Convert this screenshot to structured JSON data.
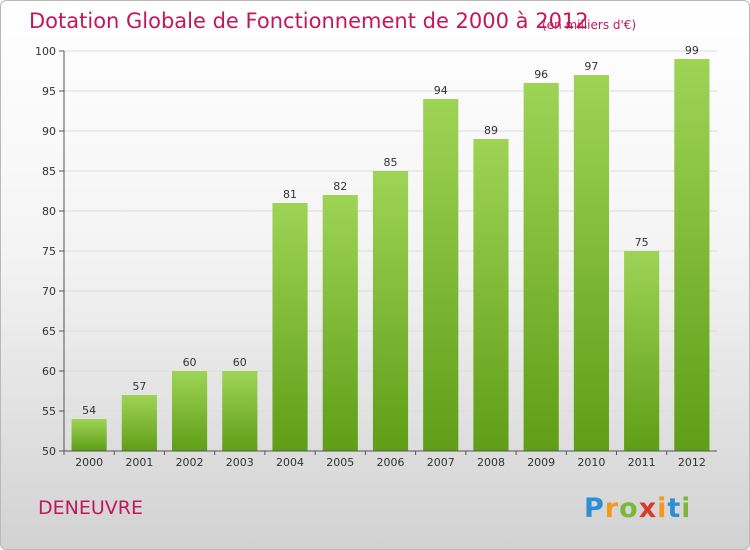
{
  "header": {
    "title": "Dotation Globale de Fonctionnement de 2000 à 2012",
    "unit": "(en milliers d'€)"
  },
  "footer": {
    "commune": "DENEUVRE",
    "brand": "Proxiti"
  },
  "colors": {
    "title": "#c2185b",
    "bar_top": "#9ed456",
    "bar_bottom": "#5f9e16",
    "grid": "#dddddd",
    "axis": "#555555"
  },
  "chart_data": {
    "type": "bar",
    "title": "Dotation Globale de Fonctionnement de 2000 à 2012",
    "subtitle": "(en milliers d'€)",
    "xlabel": "",
    "ylabel": "",
    "categories": [
      "2000",
      "2001",
      "2002",
      "2003",
      "2004",
      "2005",
      "2006",
      "2007",
      "2008",
      "2009",
      "2010",
      "2011",
      "2012"
    ],
    "values": [
      54,
      57,
      60,
      60,
      81,
      82,
      85,
      94,
      89,
      96,
      97,
      75,
      99
    ],
    "ylim": [
      50,
      100
    ],
    "yticks": [
      50,
      55,
      60,
      65,
      70,
      75,
      80,
      85,
      90,
      95,
      100
    ],
    "grid": true,
    "legend": "none"
  }
}
